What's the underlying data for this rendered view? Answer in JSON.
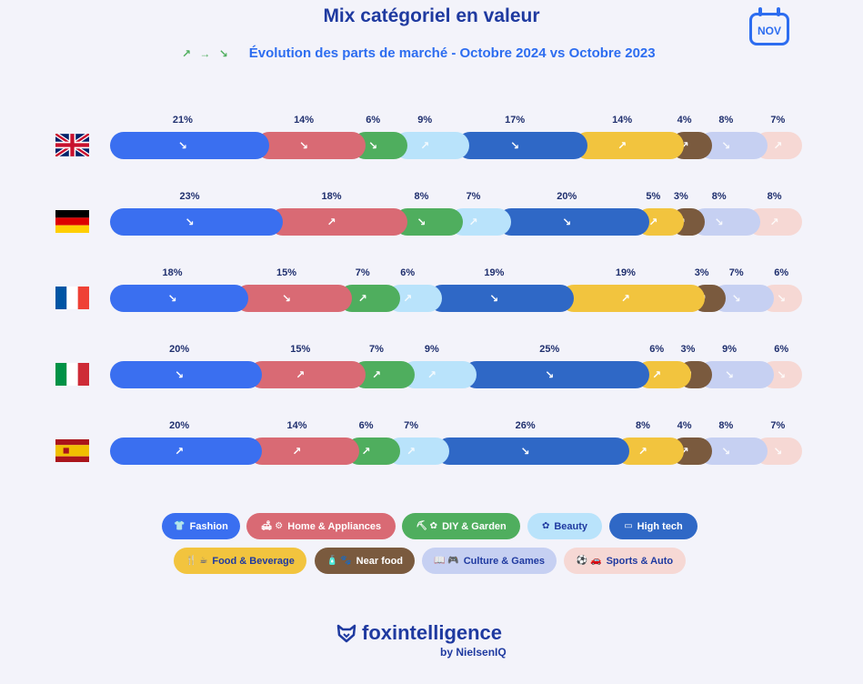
{
  "title": "Mix catégoriel en valeur",
  "subtitle": "Évolution des parts de marché - Octobre 2024 vs Octobre 2023",
  "subtitle_arrows": "↗ → ↘",
  "calendar_label": "NOV",
  "brand": {
    "name": "foxintelligence",
    "by": "by NielsenIQ"
  },
  "colors": {
    "Fashion": "#3a6ff0",
    "Home & Appliances": "#d96a74",
    "DIY & Garden": "#4fae5e",
    "Beauty": "#b9e3fb",
    "High tech": "#2f68c6",
    "Food & Beverage": "#f2c43e",
    "Near food": "#7a5a3e",
    "Culture & Games": "#c6d0f2",
    "Sports & Auto": "#f6d8d4"
  },
  "chart_data": {
    "type": "bar",
    "orientation": "horizontal-stacked-100",
    "title": "Mix catégoriel en valeur",
    "subtitle": "Évolution des parts de marché - Octobre 2024 vs Octobre 2023",
    "categories": [
      "United Kingdom",
      "Germany",
      "France",
      "Italy",
      "Spain"
    ],
    "series_names": [
      "Fashion",
      "Home & Appliances",
      "DIY & Garden",
      "Beauty",
      "High tech",
      "Food & Beverage",
      "Near food",
      "Culture & Games",
      "Sports & Auto"
    ],
    "rows": [
      {
        "country": "United Kingdom",
        "flag": "uk",
        "values": [
          21,
          14,
          6,
          9,
          17,
          14,
          4,
          8,
          7
        ],
        "labels": [
          "21%",
          "14%",
          "6%",
          "9%",
          "17%",
          "14%",
          "4%",
          "8%",
          "7%"
        ],
        "trend": [
          "↘",
          "↘",
          "↘",
          "↗",
          "↘",
          "↗",
          "↗",
          "↘",
          "↗"
        ]
      },
      {
        "country": "Germany",
        "flag": "de",
        "values": [
          23,
          18,
          8,
          7,
          20,
          5,
          3,
          8,
          8
        ],
        "labels": [
          "23%",
          "18%",
          "8%",
          "7%",
          "20%",
          "5%",
          "3%",
          "8%",
          "8%"
        ],
        "trend": [
          "↘",
          "↗",
          "↘",
          "↗",
          "↘",
          "↗",
          "↗",
          "↘",
          "↗"
        ]
      },
      {
        "country": "France",
        "flag": "fr",
        "values": [
          18,
          15,
          7,
          6,
          19,
          19,
          3,
          7,
          6
        ],
        "labels": [
          "18%",
          "15%",
          "7%",
          "6%",
          "19%",
          "19%",
          "3%",
          "7%",
          "6%"
        ],
        "trend": [
          "↘",
          "↘",
          "↗",
          "↗",
          "↘",
          "↗",
          "↗",
          "↘",
          "↘"
        ]
      },
      {
        "country": "Italy",
        "flag": "it",
        "values": [
          20,
          15,
          7,
          9,
          25,
          6,
          3,
          9,
          6
        ],
        "labels": [
          "20%",
          "15%",
          "7%",
          "9%",
          "25%",
          "6%",
          "3%",
          "9%",
          "6%"
        ],
        "trend": [
          "↘",
          "↗",
          "↗",
          "↗",
          "↘",
          "↗",
          "↗",
          "↘",
          "↘"
        ]
      },
      {
        "country": "Spain",
        "flag": "es",
        "values": [
          20,
          14,
          6,
          7,
          26,
          8,
          4,
          8,
          7
        ],
        "labels": [
          "20%",
          "14%",
          "6%",
          "7%",
          "26%",
          "8%",
          "4%",
          "8%",
          "7%"
        ],
        "trend": [
          "↗",
          "↗",
          "↗",
          "↗",
          "↘",
          "↗",
          "↗",
          "↘",
          "↘"
        ]
      }
    ],
    "legend": [
      {
        "name": "Fashion",
        "icon": "👕"
      },
      {
        "name": "Home & Appliances",
        "icon": "🛋 ⚙"
      },
      {
        "name": "DIY & Garden",
        "icon": "⛏ ✿"
      },
      {
        "name": "Beauty",
        "icon": "✿"
      },
      {
        "name": "High tech",
        "icon": "▭"
      },
      {
        "name": "Food & Beverage",
        "icon": "🍴 ☕"
      },
      {
        "name": "Near food",
        "icon": "🧴 🐾"
      },
      {
        "name": "Culture & Games",
        "icon": "📖 🎮"
      },
      {
        "name": "Sports & Auto",
        "icon": "⚽ 🚗"
      }
    ],
    "legend_position": "bottom"
  }
}
